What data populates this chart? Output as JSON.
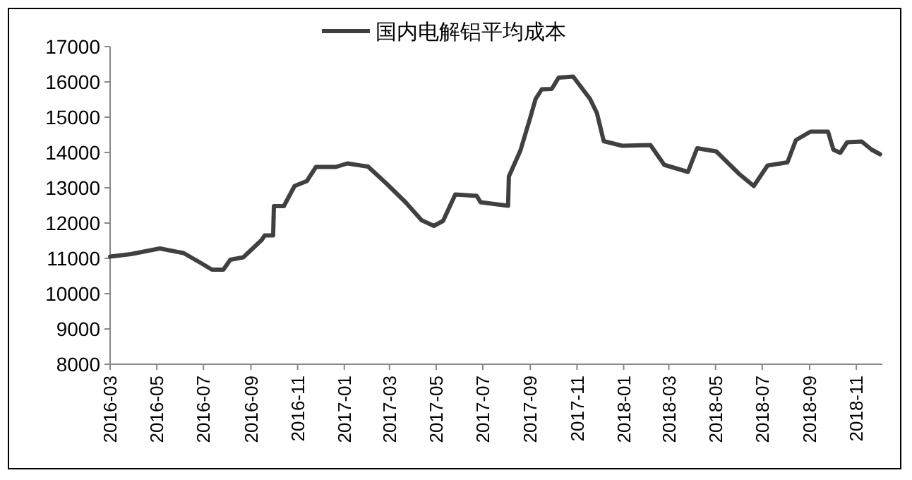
{
  "chart_data": {
    "type": "line",
    "legend": "top",
    "x": [
      "2016-03-01",
      "2016-03-28",
      "2016-05-05",
      "2016-06-05",
      "2016-06-29",
      "2016-07-12",
      "2016-07-27",
      "2016-08-05",
      "2016-08-22",
      "2016-09-15",
      "2016-09-19",
      "2016-09-30",
      "2016-10-01",
      "2016-10-14",
      "2016-10-28",
      "2016-11-13",
      "2016-11-25",
      "2016-12-21",
      "2017-01-05",
      "2017-02-01",
      "2017-02-25",
      "2017-03-22",
      "2017-04-12",
      "2017-04-28",
      "2017-05-10",
      "2017-05-26",
      "2017-06-23",
      "2017-06-28",
      "2017-08-03",
      "2017-08-04",
      "2017-08-19",
      "2017-09-01",
      "2017-09-08",
      "2017-09-16",
      "2017-09-29",
      "2017-10-08",
      "2017-10-27",
      "2017-11-18",
      "2017-11-27",
      "2017-12-06",
      "2017-12-30",
      "2018-02-05",
      "2018-02-23",
      "2018-03-26",
      "2018-04-07",
      "2018-05-02",
      "2018-06-01",
      "2018-06-20",
      "2018-07-08",
      "2018-08-03",
      "2018-08-14",
      "2018-09-02",
      "2018-09-25",
      "2018-10-02",
      "2018-10-11",
      "2018-10-20",
      "2018-11-08",
      "2018-11-21",
      "2018-12-02"
    ],
    "series": [
      {
        "name": "国内电解铝平均成本",
        "color": "#404040",
        "values": [
          11050,
          11120,
          11280,
          11150,
          10850,
          10680,
          10680,
          10960,
          11030,
          11520,
          11650,
          11650,
          12480,
          12480,
          13050,
          13190,
          13590,
          13590,
          13690,
          13600,
          13120,
          12590,
          12080,
          11920,
          12060,
          12810,
          12770,
          12590,
          12490,
          13320,
          14050,
          14990,
          15520,
          15790,
          15800,
          16120,
          16150,
          15520,
          15120,
          14320,
          14190,
          14210,
          13650,
          13450,
          14120,
          14030,
          13390,
          13050,
          13630,
          13720,
          14350,
          14590,
          14590,
          14080,
          13990,
          14290,
          14310,
          14080,
          13950
        ]
      }
    ],
    "xlim": [
      "2016-03-01",
      "2018-12-05"
    ],
    "xticks": [
      "2016-03",
      "2016-05",
      "2016-07",
      "2016-09",
      "2016-11",
      "2017-01",
      "2017-03",
      "2017-05",
      "2017-07",
      "2017-09",
      "2017-11",
      "2018-01",
      "2018-03",
      "2018-05",
      "2018-07",
      "2018-09",
      "2018-11"
    ],
    "ylim": [
      8000,
      17000
    ],
    "yticks": [
      8000,
      9000,
      10000,
      11000,
      12000,
      13000,
      14000,
      15000,
      16000,
      17000
    ],
    "grid": false
  }
}
